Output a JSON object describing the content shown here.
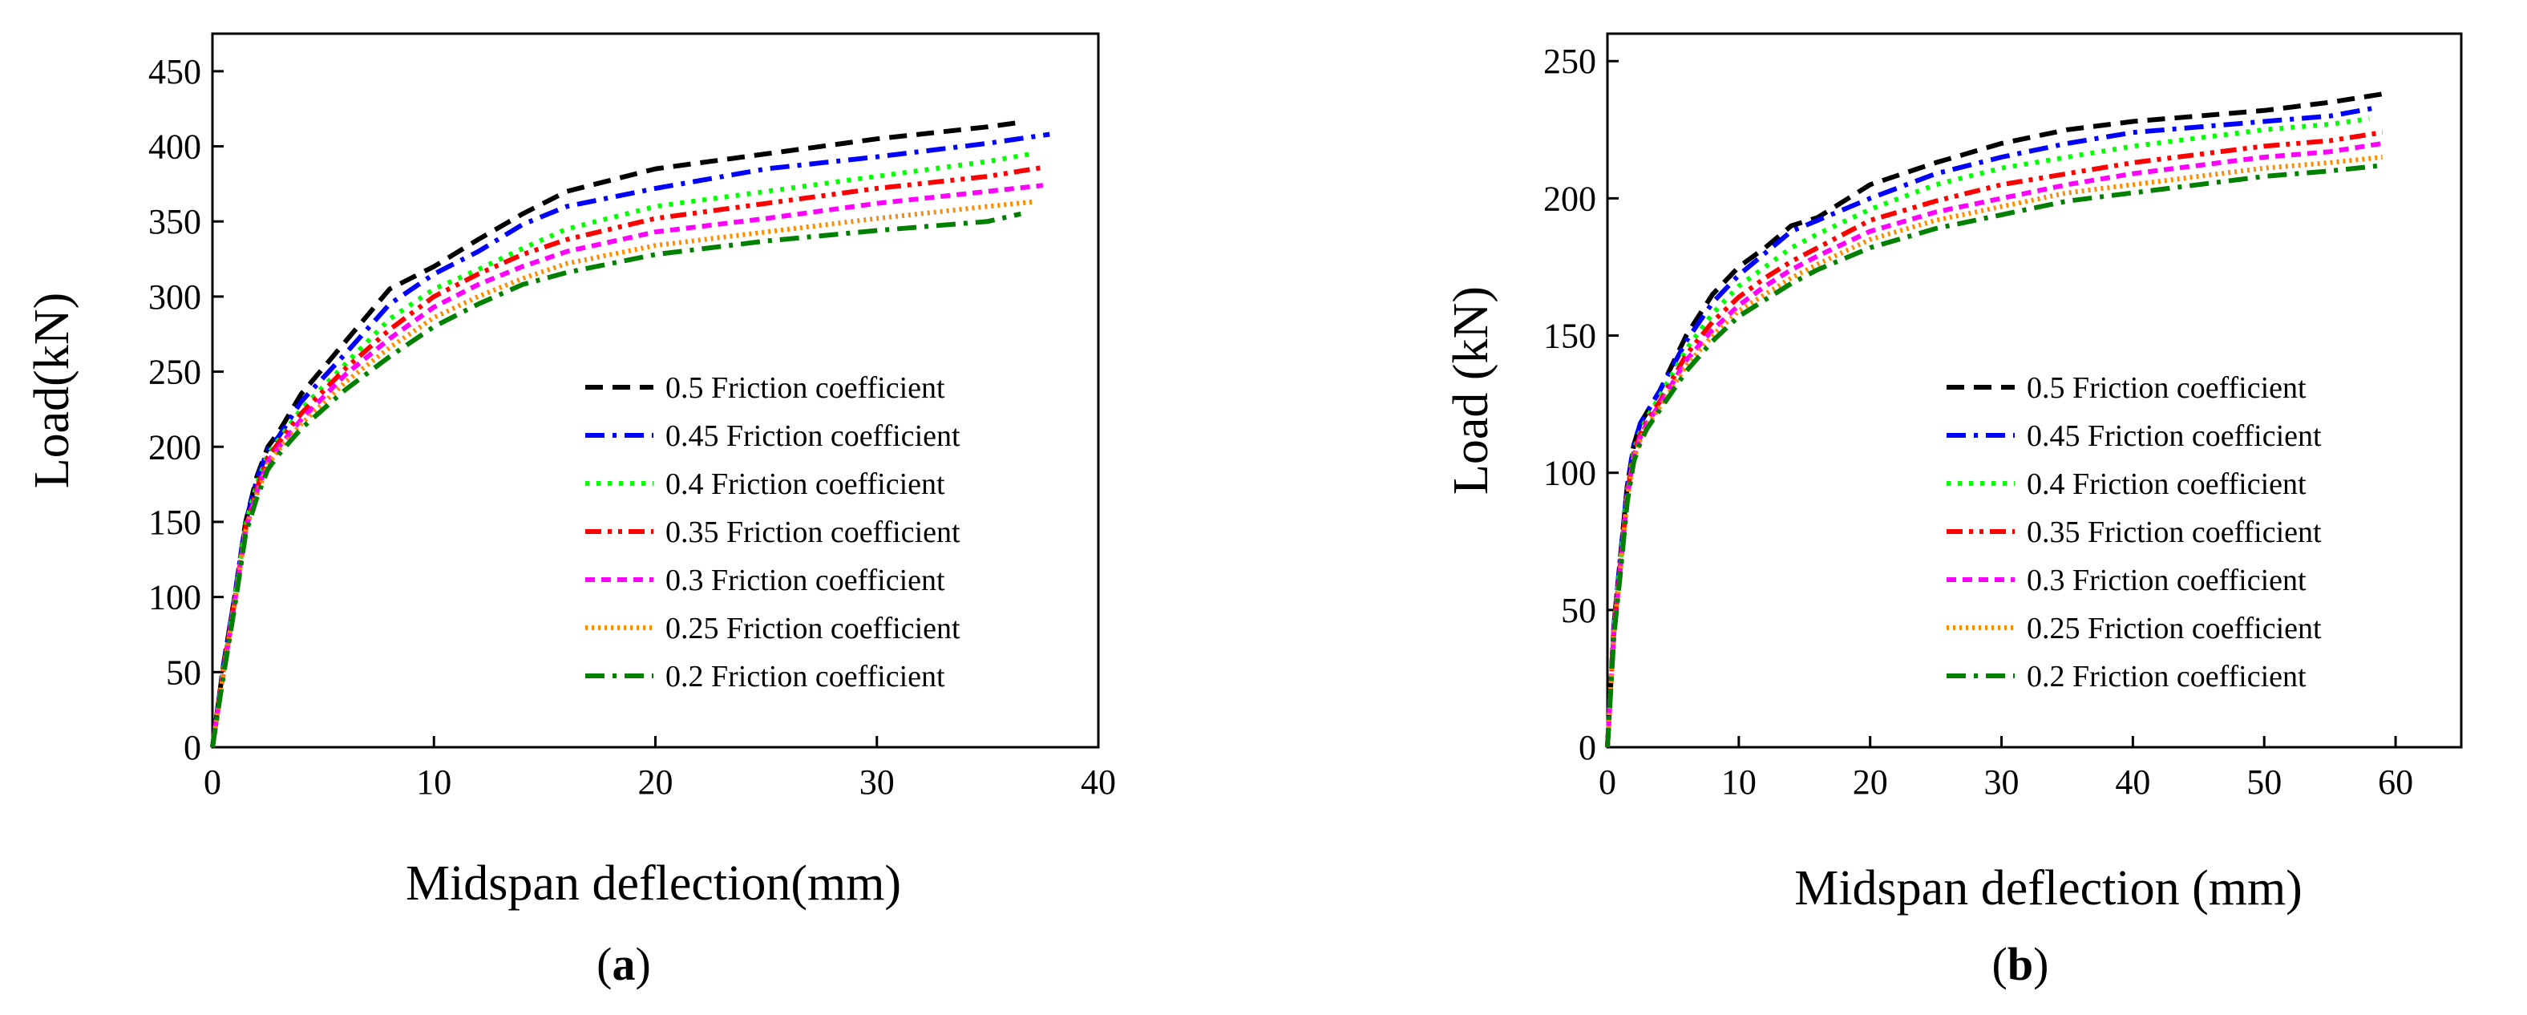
{
  "panels": [
    {
      "panel_label": "a",
      "chart_data": {
        "type": "line",
        "title": "",
        "xlabel": "Midspan deflection(mm)",
        "ylabel": "Load(kN)",
        "xlim": [
          0,
          40
        ],
        "ylim": [
          0,
          475
        ],
        "xticks": [
          0,
          10,
          20,
          30,
          40
        ],
        "yticks": [
          0,
          50,
          100,
          150,
          200,
          250,
          300,
          350,
          400,
          450
        ],
        "grid": false,
        "legend_position": "center-right",
        "series": [
          {
            "name": "0.5 Friction coefficient",
            "color": "#000000",
            "dash": "dash",
            "x": [
              0,
              0.5,
              1,
              1.5,
              2,
              2.5,
              3,
              4,
              6,
              8,
              10,
              12,
              14,
              16,
              20,
              25,
              30,
              35,
              36.5
            ],
            "y": [
              0,
              55,
              100,
              150,
              180,
              200,
              210,
              235,
              270,
              305,
              320,
              338,
              355,
              370,
              385,
              395,
              405,
              413,
              416
            ]
          },
          {
            "name": "0.45 Friction coefficient",
            "color": "#0000ff",
            "dash": "dashdot",
            "x": [
              0,
              0.5,
              1,
              1.5,
              2,
              2.5,
              3,
              4,
              6,
              8,
              10,
              12,
              14,
              16,
              20,
              25,
              30,
              35,
              37.8
            ],
            "y": [
              0,
              55,
              100,
              150,
              178,
              198,
              207,
              230,
              262,
              295,
              315,
              330,
              348,
              360,
              372,
              385,
              393,
              402,
              408
            ]
          },
          {
            "name": "0.4 Friction coefficient",
            "color": "#00ff00",
            "dash": "dot",
            "x": [
              0,
              0.5,
              1,
              1.5,
              2,
              2.5,
              3,
              4,
              6,
              8,
              10,
              12,
              14,
              16,
              20,
              25,
              30,
              35,
              37
            ],
            "y": [
              0,
              52,
              98,
              148,
              175,
              195,
              205,
              225,
              255,
              285,
              305,
              318,
              332,
              345,
              360,
              370,
              380,
              390,
              395
            ]
          },
          {
            "name": "0.35 Friction coefficient",
            "color": "#ff0000",
            "dash": "dashdotdot",
            "x": [
              0,
              0.5,
              1,
              1.5,
              2,
              2.5,
              3,
              4,
              6,
              8,
              10,
              12,
              14,
              16,
              20,
              25,
              30,
              35,
              37.5
            ],
            "y": [
              0,
              52,
              97,
              146,
              172,
              193,
              203,
              222,
              252,
              278,
              300,
              315,
              328,
              338,
              352,
              362,
              372,
              380,
              386
            ]
          },
          {
            "name": "0.3 Friction coefficient",
            "color": "#ff00ff",
            "dash": "shortdash",
            "x": [
              0,
              0.5,
              1,
              1.5,
              2,
              2.5,
              3,
              4,
              6,
              8,
              10,
              12,
              14,
              16,
              20,
              25,
              30,
              35,
              37.5
            ],
            "y": [
              0,
              50,
              96,
              145,
              170,
              190,
              200,
              218,
              248,
              272,
              293,
              308,
              320,
              330,
              343,
              352,
              362,
              370,
              374
            ]
          },
          {
            "name": "0.25 Friction coefficient",
            "color": "#ff8c00",
            "dash": "shortdot",
            "x": [
              0,
              0.5,
              1,
              1.5,
              2,
              2.5,
              3,
              4,
              6,
              8,
              10,
              12,
              14,
              16,
              20,
              25,
              30,
              35,
              37
            ],
            "y": [
              0,
              50,
              95,
              144,
              168,
              188,
              198,
              215,
              243,
              266,
              286,
              300,
              312,
              322,
              334,
              343,
              352,
              360,
              363
            ]
          },
          {
            "name": "0.2 Friction coefficient",
            "color": "#008000",
            "dash": "dashdot",
            "x": [
              0,
              0.5,
              1,
              1.5,
              2,
              2.5,
              3,
              4,
              6,
              8,
              10,
              12,
              14,
              16,
              20,
              25,
              30,
              35,
              36.5
            ],
            "y": [
              0,
              48,
              93,
              142,
              166,
              185,
              195,
              212,
              238,
              260,
              280,
              295,
              308,
              316,
              328,
              337,
              344,
              350,
              355
            ]
          }
        ]
      }
    },
    {
      "panel_label": "b",
      "chart_data": {
        "type": "line",
        "title": "",
        "xlabel": "Midspan deflection (mm)",
        "ylabel": "Load (kN)",
        "xlim": [
          0,
          65
        ],
        "ylim": [
          0,
          260
        ],
        "xticks": [
          0,
          10,
          20,
          30,
          40,
          50,
          60
        ],
        "yticks": [
          0,
          50,
          100,
          150,
          200,
          250
        ],
        "grid": false,
        "legend_position": "center-right",
        "series": [
          {
            "name": "0.5 Friction coefficient",
            "color": "#000000",
            "dash": "dash",
            "x": [
              0,
              0.5,
              1,
              1.5,
              2,
              2.5,
              3,
              4,
              6,
              8,
              10,
              12,
              14,
              16,
              20,
              25,
              30,
              35,
              40,
              45,
              50,
              55,
              59
            ],
            "y": [
              0,
              45,
              70,
              95,
              110,
              118,
              122,
              130,
              150,
              165,
              175,
              182,
              190,
              193,
              205,
              213,
              220,
              225,
              228,
              230,
              232,
              235,
              238
            ]
          },
          {
            "name": "0.45 Friction coefficient",
            "color": "#0000ff",
            "dash": "dashdot",
            "x": [
              0,
              0.5,
              1,
              1.5,
              2,
              2.5,
              3,
              4,
              6,
              8,
              10,
              12,
              14,
              16,
              20,
              25,
              30,
              35,
              40,
              45,
              50,
              55,
              58.5
            ],
            "y": [
              0,
              45,
              70,
              95,
              110,
              118,
              122,
              130,
              148,
              162,
              172,
              180,
              188,
              192,
              200,
              209,
              215,
              220,
              224,
              226,
              228,
              230,
              233
            ]
          },
          {
            "name": "0.4 Friction coefficient",
            "color": "#00ff00",
            "dash": "dot",
            "x": [
              0,
              0.5,
              1,
              1.5,
              2,
              2.5,
              3,
              4,
              6,
              8,
              10,
              12,
              14,
              16,
              20,
              25,
              30,
              35,
              40,
              45,
              50,
              55,
              58
            ],
            "y": [
              0,
              44,
              68,
              93,
              108,
              115,
              120,
              128,
              145,
              158,
              168,
              175,
              182,
              187,
              196,
              205,
              211,
              215,
              219,
              222,
              225,
              227,
              229
            ]
          },
          {
            "name": "0.35 Friction coefficient",
            "color": "#ff0000",
            "dash": "dashdotdot",
            "x": [
              0,
              0.5,
              1,
              1.5,
              2,
              2.5,
              3,
              4,
              6,
              8,
              10,
              12,
              14,
              16,
              20,
              25,
              30,
              35,
              40,
              45,
              50,
              55,
              59
            ],
            "y": [
              0,
              43,
              67,
              92,
              107,
              114,
              119,
              126,
              143,
              155,
              164,
              171,
              177,
              182,
              192,
              199,
              205,
              209,
              213,
              216,
              219,
              221,
              224
            ]
          },
          {
            "name": "0.3 Friction coefficient",
            "color": "#ff00ff",
            "dash": "shortdash",
            "x": [
              0,
              0.5,
              1,
              1.5,
              2,
              2.5,
              3,
              4,
              6,
              8,
              10,
              12,
              14,
              16,
              20,
              25,
              30,
              35,
              40,
              45,
              50,
              55,
              59
            ],
            "y": [
              0,
              42,
              66,
              91,
              106,
              113,
              118,
              125,
              141,
              152,
              161,
              168,
              174,
              179,
              188,
              195,
              200,
              205,
              209,
              212,
              215,
              217,
              220
            ]
          },
          {
            "name": "0.25 Friction coefficient",
            "color": "#ff8c00",
            "dash": "shortdot",
            "x": [
              0,
              0.5,
              1,
              1.5,
              2,
              2.5,
              3,
              4,
              6,
              8,
              10,
              12,
              14,
              16,
              20,
              25,
              30,
              35,
              40,
              45,
              50,
              55,
              59
            ],
            "y": [
              0,
              42,
              65,
              90,
              105,
              112,
              117,
              124,
              139,
              150,
              159,
              165,
              171,
              176,
              185,
              192,
              197,
              202,
              205,
              208,
              211,
              213,
              215
            ]
          },
          {
            "name": "0.2 Friction coefficient",
            "color": "#008000",
            "dash": "dashdot",
            "x": [
              0,
              0.5,
              1,
              1.5,
              2,
              2.5,
              3,
              4,
              6,
              8,
              10,
              12,
              14,
              16,
              20,
              25,
              30,
              35,
              40,
              45,
              50,
              55,
              59
            ],
            "y": [
              0,
              41,
              64,
              89,
              104,
              111,
              116,
              123,
              137,
              148,
              157,
              163,
              169,
              174,
              182,
              189,
              194,
              199,
              202,
              205,
              208,
              210,
              212
            ]
          }
        ]
      }
    }
  ]
}
